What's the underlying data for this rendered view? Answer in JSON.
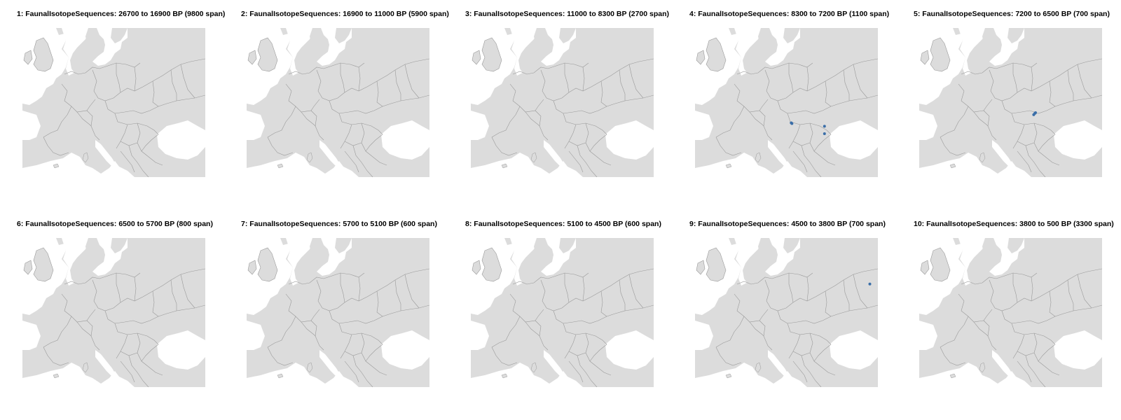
{
  "panels": [
    {
      "title": "1: FaunalIsotopeSequences: 26700 to 16900 BP (9800 span)",
      "points": []
    },
    {
      "title": "2: FaunalIsotopeSequences: 16900 to 11000 BP (5900 span)",
      "points": []
    },
    {
      "title": "3: FaunalIsotopeSequences: 11000 to 8300 BP (2700 span)",
      "points": []
    },
    {
      "title": "4: FaunalIsotopeSequences: 8300 to 7200 BP (1100 span)",
      "points": [
        {
          "lon": 16.3,
          "lat": 44.0
        },
        {
          "lon": 16.5,
          "lat": 43.9
        },
        {
          "lon": 25.4,
          "lat": 43.5
        },
        {
          "lon": 25.4,
          "lat": 42.4
        }
      ]
    },
    {
      "title": "5: FaunalIsotopeSequences: 7200 to 6500 BP (700 span)",
      "points": [
        {
          "lon": 21.3,
          "lat": 45.2
        },
        {
          "lon": 21.6,
          "lat": 45.4
        },
        {
          "lon": 21.8,
          "lat": 45.5
        }
      ]
    },
    {
      "title": "6: FaunalIsotopeSequences: 6500 to 5700 BP (800 span)",
      "points": []
    },
    {
      "title": "7: FaunalIsotopeSequences: 5700 to 5100 BP (600 span)",
      "points": []
    },
    {
      "title": "8: FaunalIsotopeSequences: 5100 to 4500 BP (600 span)",
      "points": []
    },
    {
      "title": "9: FaunalIsotopeSequences: 4500 to 3800 BP (700 span)",
      "points": [
        {
          "lon": 37.8,
          "lat": 51.2
        }
      ]
    },
    {
      "title": "10: FaunalIsotopeSequences: 3800 to 500 BP (3300 span)",
      "points": []
    }
  ],
  "map": {
    "extent": {
      "lon_min": -10,
      "lon_max": 40,
      "lat_min": 36,
      "lat_max": 58
    },
    "land_color": "#dcdcdc",
    "border_color": "#9a9a9a",
    "sea_color": "#ffffff",
    "point_color": "#3a6ea8"
  }
}
